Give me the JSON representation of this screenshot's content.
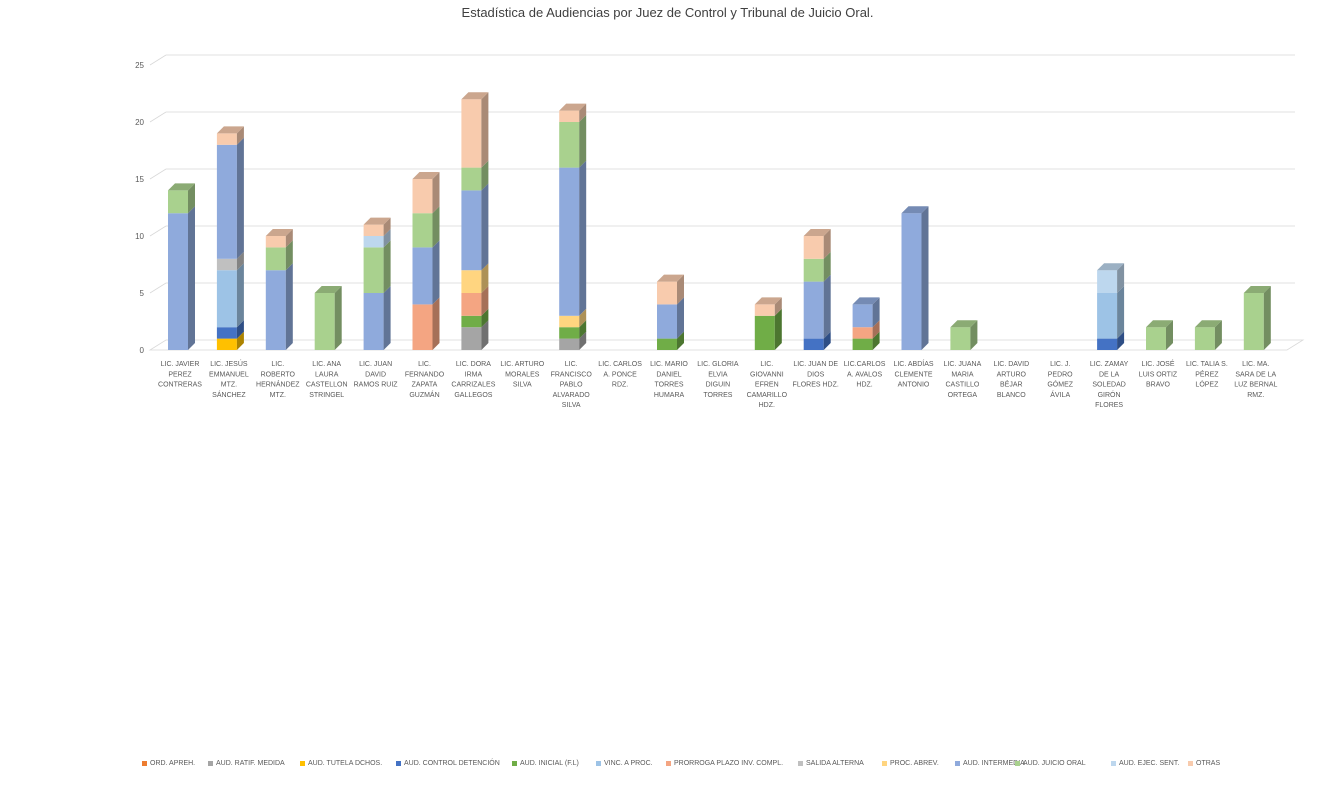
{
  "chart_data": {
    "type": "bar",
    "stacked": true,
    "three_d": true,
    "title": "Estadística de Audiencias por Juez de Control y Tribunal de Juicio Oral.",
    "ylim": [
      0,
      25
    ],
    "yticks": [
      0,
      5,
      10,
      15,
      20,
      25
    ],
    "grid": true,
    "legend_position": "bottom",
    "categories": [
      [
        "LIC. JAVIER",
        "PEREZ",
        "CONTRERAS"
      ],
      [
        "LIC. JESÚS",
        "EMMANUEL",
        "MTZ.",
        "SÁNCHEZ"
      ],
      [
        "LIC.",
        "ROBERTO",
        "HERNÁNDEZ",
        "MTZ."
      ],
      [
        "LIC. ANA",
        "LAURA",
        "CASTELLON",
        "STRINGEL"
      ],
      [
        "LIC. JUAN",
        "DAVID",
        "RAMOS RUIZ"
      ],
      [
        "LIC.",
        "FERNANDO",
        "ZAPATA",
        "GUZMÁN"
      ],
      [
        "LIC. DORA",
        "IRMA",
        "CARRIZALES",
        "GALLEGOS"
      ],
      [
        "LIC. ARTURO",
        "MORALES",
        "SILVA"
      ],
      [
        "LIC.",
        "FRANCISCO",
        "PABLO",
        "ALVARADO",
        "SILVA"
      ],
      [
        "LIC. CARLOS",
        "A. PONCE",
        "RDZ."
      ],
      [
        "LIC. MARIO",
        "DANIEL",
        "TORRES",
        "HUMARA"
      ],
      [
        "LIC. GLORIA",
        "ELVIA",
        "DIGUIN",
        "TORRES"
      ],
      [
        "LIC.",
        "GIOVANNI",
        "EFREN",
        "CAMARILLO",
        "HDZ."
      ],
      [
        "LIC. JUAN DE",
        "DIOS",
        "FLORES HDZ."
      ],
      [
        "LIC.CARLOS",
        "A. AVALOS",
        "HDZ."
      ],
      [
        "LIC. ABDÍAS",
        "CLEMENTE",
        "ANTONIO"
      ],
      [
        "LIC. JUANA",
        "MARIA",
        "CASTILLO",
        "ORTEGA"
      ],
      [
        "LIC. DAVID",
        "ARTURO",
        "BÉJAR",
        "BLANCO"
      ],
      [
        "LIC. J.",
        "PEDRO",
        "GÓMEZ",
        "ÁVILA"
      ],
      [
        "LIC. ZAMAY",
        "DE LA",
        "SOLEDAD",
        "GIRÓN",
        "FLORES"
      ],
      [
        "LIC. JOSÉ",
        "LUIS ORTIZ",
        "BRAVO"
      ],
      [
        "LIC. TALIA S.",
        "PÉREZ",
        "LÓPEZ"
      ],
      [
        "LIC. MA.",
        "SARA DE LA",
        "LUZ BERNAL",
        "RMZ."
      ]
    ],
    "series": [
      {
        "name": "ORD. APREH.",
        "color": "#ED7D31",
        "values": [
          0,
          0,
          0,
          0,
          0,
          0,
          0,
          0,
          0,
          0,
          0,
          0,
          0,
          0,
          0,
          0,
          0,
          0,
          0,
          0,
          0,
          0,
          0
        ]
      },
      {
        "name": "AUD. RATIF. MEDIDA",
        "color": "#A5A5A5",
        "values": [
          0,
          0,
          0,
          0,
          0,
          0,
          2,
          0,
          1,
          0,
          0,
          0,
          0,
          0,
          0,
          0,
          0,
          0,
          0,
          0,
          0,
          0,
          0
        ]
      },
      {
        "name": "AUD. TUTELA DCHOS.",
        "color": "#FFC000",
        "values": [
          0,
          1,
          0,
          0,
          0,
          0,
          0,
          0,
          0,
          0,
          0,
          0,
          0,
          0,
          0,
          0,
          0,
          0,
          0,
          0,
          0,
          0,
          0
        ]
      },
      {
        "name": "AUD. CONTROL DETENCIÓN",
        "color": "#4472C4",
        "values": [
          0,
          1,
          0,
          0,
          0,
          0,
          0,
          0,
          0,
          0,
          0,
          0,
          0,
          1,
          0,
          0,
          0,
          0,
          0,
          1,
          0,
          0,
          0
        ]
      },
      {
        "name": "AUD. INICIAL (F.L)",
        "color": "#70AD47",
        "values": [
          0,
          0,
          0,
          0,
          0,
          0,
          1,
          0,
          1,
          0,
          1,
          0,
          3,
          0,
          1,
          0,
          0,
          0,
          0,
          0,
          0,
          0,
          0
        ]
      },
      {
        "name": "VINC. A PROC.",
        "color": "#9DC3E6",
        "values": [
          0,
          5,
          0,
          0,
          0,
          0,
          0,
          0,
          0,
          0,
          0,
          0,
          0,
          0,
          0,
          0,
          0,
          0,
          0,
          4,
          0,
          0,
          0
        ]
      },
      {
        "name": "PRORROGA PLAZO INV. COMPL.",
        "color": "#F4A582",
        "values": [
          0,
          0,
          0,
          0,
          0,
          4,
          2,
          0,
          0,
          0,
          0,
          0,
          0,
          0,
          1,
          0,
          0,
          0,
          0,
          0,
          0,
          0,
          0
        ]
      },
      {
        "name": "SALIDA ALTERNA",
        "color": "#C0C0C0",
        "values": [
          0,
          1,
          0,
          0,
          0,
          0,
          0,
          0,
          0,
          0,
          0,
          0,
          0,
          0,
          0,
          0,
          0,
          0,
          0,
          0,
          0,
          0,
          0
        ]
      },
      {
        "name": "PROC. ABREV.",
        "color": "#FFD580",
        "values": [
          0,
          0,
          0,
          0,
          0,
          0,
          2,
          0,
          1,
          0,
          0,
          0,
          0,
          0,
          0,
          0,
          0,
          0,
          0,
          0,
          0,
          0,
          0
        ]
      },
      {
        "name": "AUD. INTERMEDIA",
        "color": "#8FAADC",
        "values": [
          12,
          10,
          7,
          0,
          5,
          5,
          7,
          0,
          13,
          0,
          3,
          0,
          0,
          5,
          2,
          12,
          0,
          0,
          0,
          0,
          0,
          0,
          0
        ]
      },
      {
        "name": "AUD. JUICIO ORAL",
        "color": "#A9D18E",
        "values": [
          2,
          0,
          2,
          5,
          4,
          3,
          2,
          0,
          4,
          0,
          0,
          0,
          0,
          2,
          0,
          0,
          2,
          0,
          0,
          0,
          2,
          2,
          5
        ]
      },
      {
        "name": "AUD. EJEC. SENT.",
        "color": "#BDD7EE",
        "values": [
          0,
          0,
          0,
          0,
          1,
          0,
          0,
          0,
          0,
          0,
          0,
          0,
          0,
          0,
          0,
          0,
          0,
          0,
          0,
          2,
          0,
          0,
          0
        ]
      },
      {
        "name": "OTRAS",
        "color": "#F8CBAD",
        "values": [
          0,
          1,
          1,
          0,
          1,
          3,
          6,
          0,
          1,
          0,
          2,
          0,
          1,
          2,
          0,
          0,
          0,
          0,
          0,
          0,
          0,
          0,
          0
        ]
      }
    ]
  }
}
